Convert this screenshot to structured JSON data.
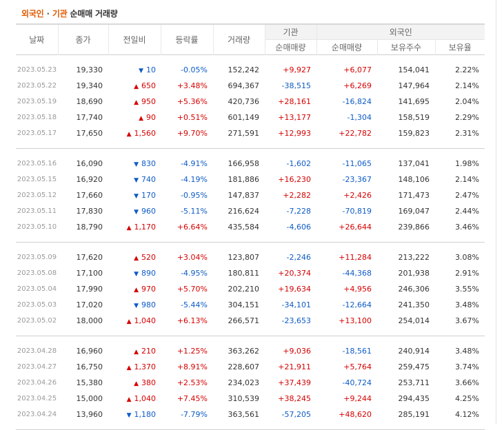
{
  "title": {
    "part1": "외국인",
    "dot": " · ",
    "part2": "기관",
    "rest": " 순매매 거래량"
  },
  "headers": {
    "date": "날짜",
    "close": "종가",
    "change": "전일비",
    "rate": "등락률",
    "volume": "거래량",
    "inst_group": "기관",
    "foreign_group": "외국인",
    "inst_net": "순매매량",
    "foreign_net": "순매매량",
    "foreign_shares": "보유주수",
    "foreign_ratio": "보유율"
  },
  "colors": {
    "up": "#d60000",
    "down": "#0d5bc6",
    "accent": "#e05a00"
  },
  "groups": [
    {
      "rows": [
        {
          "date": "2023.05.23",
          "close": "19,330",
          "dir": "down",
          "change": "10",
          "rate": "-0.05%",
          "volume": "152,242",
          "inst": "+9,927",
          "foreign": "+6,077",
          "shares": "154,041",
          "ratio": "2.22%"
        },
        {
          "date": "2023.05.22",
          "close": "19,340",
          "dir": "up",
          "change": "650",
          "rate": "+3.48%",
          "volume": "694,367",
          "inst": "-38,515",
          "foreign": "+6,269",
          "shares": "147,964",
          "ratio": "2.14%"
        },
        {
          "date": "2023.05.19",
          "close": "18,690",
          "dir": "up",
          "change": "950",
          "rate": "+5.36%",
          "volume": "420,736",
          "inst": "+28,161",
          "foreign": "-16,824",
          "shares": "141,695",
          "ratio": "2.04%"
        },
        {
          "date": "2023.05.18",
          "close": "17,740",
          "dir": "up",
          "change": "90",
          "rate": "+0.51%",
          "volume": "601,149",
          "inst": "+13,177",
          "foreign": "-1,304",
          "shares": "158,519",
          "ratio": "2.29%"
        },
        {
          "date": "2023.05.17",
          "close": "17,650",
          "dir": "up",
          "change": "1,560",
          "rate": "+9.70%",
          "volume": "271,591",
          "inst": "+12,993",
          "foreign": "+22,782",
          "shares": "159,823",
          "ratio": "2.31%"
        }
      ]
    },
    {
      "rows": [
        {
          "date": "2023.05.16",
          "close": "16,090",
          "dir": "down",
          "change": "830",
          "rate": "-4.91%",
          "volume": "166,958",
          "inst": "-1,602",
          "foreign": "-11,065",
          "shares": "137,041",
          "ratio": "1.98%"
        },
        {
          "date": "2023.05.15",
          "close": "16,920",
          "dir": "down",
          "change": "740",
          "rate": "-4.19%",
          "volume": "181,886",
          "inst": "+16,230",
          "foreign": "-23,367",
          "shares": "148,106",
          "ratio": "2.14%"
        },
        {
          "date": "2023.05.12",
          "close": "17,660",
          "dir": "down",
          "change": "170",
          "rate": "-0.95%",
          "volume": "147,837",
          "inst": "+2,282",
          "foreign": "+2,426",
          "shares": "171,473",
          "ratio": "2.47%"
        },
        {
          "date": "2023.05.11",
          "close": "17,830",
          "dir": "down",
          "change": "960",
          "rate": "-5.11%",
          "volume": "216,624",
          "inst": "-7,228",
          "foreign": "-70,819",
          "shares": "169,047",
          "ratio": "2.44%"
        },
        {
          "date": "2023.05.10",
          "close": "18,790",
          "dir": "up",
          "change": "1,170",
          "rate": "+6.64%",
          "volume": "435,584",
          "inst": "-4,606",
          "foreign": "+26,644",
          "shares": "239,866",
          "ratio": "3.46%"
        }
      ]
    },
    {
      "rows": [
        {
          "date": "2023.05.09",
          "close": "17,620",
          "dir": "up",
          "change": "520",
          "rate": "+3.04%",
          "volume": "123,807",
          "inst": "-2,246",
          "foreign": "+11,284",
          "shares": "213,222",
          "ratio": "3.08%"
        },
        {
          "date": "2023.05.08",
          "close": "17,100",
          "dir": "down",
          "change": "890",
          "rate": "-4.95%",
          "volume": "180,811",
          "inst": "+20,374",
          "foreign": "-44,368",
          "shares": "201,938",
          "ratio": "2.91%"
        },
        {
          "date": "2023.05.04",
          "close": "17,990",
          "dir": "up",
          "change": "970",
          "rate": "+5.70%",
          "volume": "202,210",
          "inst": "+19,634",
          "foreign": "+4,956",
          "shares": "246,306",
          "ratio": "3.55%"
        },
        {
          "date": "2023.05.03",
          "close": "17,020",
          "dir": "down",
          "change": "980",
          "rate": "-5.44%",
          "volume": "304,151",
          "inst": "-34,101",
          "foreign": "-12,664",
          "shares": "241,350",
          "ratio": "3.48%"
        },
        {
          "date": "2023.05.02",
          "close": "18,000",
          "dir": "up",
          "change": "1,040",
          "rate": "+6.13%",
          "volume": "266,571",
          "inst": "-23,653",
          "foreign": "+13,100",
          "shares": "254,014",
          "ratio": "3.67%"
        }
      ]
    },
    {
      "rows": [
        {
          "date": "2023.04.28",
          "close": "16,960",
          "dir": "up",
          "change": "210",
          "rate": "+1.25%",
          "volume": "363,262",
          "inst": "+9,036",
          "foreign": "-18,561",
          "shares": "240,914",
          "ratio": "3.48%"
        },
        {
          "date": "2023.04.27",
          "close": "16,750",
          "dir": "up",
          "change": "1,370",
          "rate": "+8.91%",
          "volume": "228,607",
          "inst": "+21,911",
          "foreign": "+5,764",
          "shares": "259,475",
          "ratio": "3.74%"
        },
        {
          "date": "2023.04.26",
          "close": "15,380",
          "dir": "up",
          "change": "380",
          "rate": "+2.53%",
          "volume": "234,023",
          "inst": "+37,439",
          "foreign": "-40,724",
          "shares": "253,711",
          "ratio": "3.66%"
        },
        {
          "date": "2023.04.25",
          "close": "15,000",
          "dir": "up",
          "change": "1,040",
          "rate": "+7.45%",
          "volume": "310,539",
          "inst": "+38,245",
          "foreign": "+9,244",
          "shares": "294,435",
          "ratio": "4.25%"
        },
        {
          "date": "2023.04.24",
          "close": "13,960",
          "dir": "down",
          "change": "1,180",
          "rate": "-7.79%",
          "volume": "363,561",
          "inst": "-57,205",
          "foreign": "+48,620",
          "shares": "285,191",
          "ratio": "4.12%"
        }
      ]
    }
  ]
}
